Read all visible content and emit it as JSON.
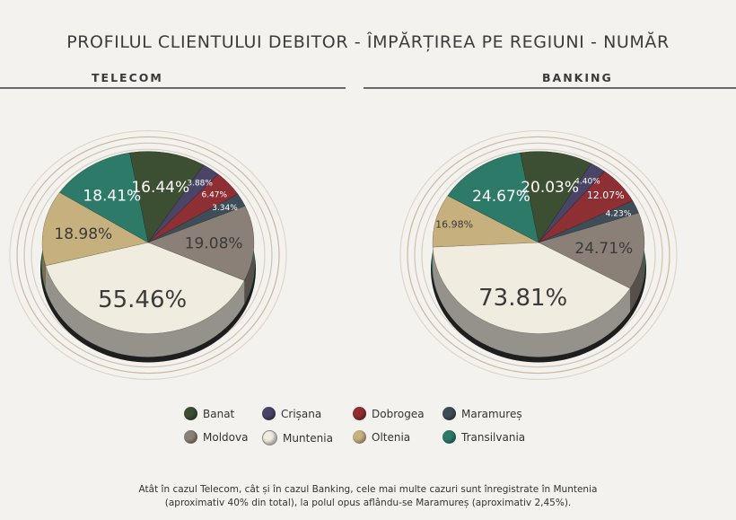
{
  "title": "PROFILUL CLIENTULUI DEBITOR - ÎMPĂRȚIREA PE REGIUNI - NUMĂR",
  "note": {
    "line1": "Atât în cazul Telecom, cât și în cazul Banking, cele mai multe cazuri sunt înregistrate în Muntenia",
    "line2": "(aproximativ 40% din total), la polul opus aflându-se Maramureș (aproximativ 2,45%)."
  },
  "colors": {
    "Banat": "#3d4f32",
    "Crișana": "#4a4466",
    "Dobrogea": "#8e2f34",
    "Maramureș": "#3e4d58",
    "Moldova": "#8a8077",
    "Muntenia": "#f1ece0",
    "Oltenia": "#c6b07e",
    "Transilvania": "#2e7a69"
  },
  "legend": [
    {
      "name": "Banat",
      "label": "Banat"
    },
    {
      "name": "Crișana",
      "label": "Crișana"
    },
    {
      "name": "Dobrogea",
      "label": "Dobrogea"
    },
    {
      "name": "Maramureș",
      "label": "Maramureș"
    },
    {
      "name": "Moldova",
      "label": "Moldova"
    },
    {
      "name": "Muntenia",
      "label": "Muntenia"
    },
    {
      "name": "Oltenia",
      "label": "Oltenia"
    },
    {
      "name": "Transilvania",
      "label": "Transilvania"
    }
  ],
  "chart_data": [
    {
      "type": "pie",
      "title": "TELECOM",
      "slices": [
        {
          "name": "Banat",
          "value": 16.44,
          "label": "16.44%"
        },
        {
          "name": "Crișana",
          "value": 3.88,
          "label": "3.88%"
        },
        {
          "name": "Dobrogea",
          "value": 6.47,
          "label": "6.47%"
        },
        {
          "name": "Maramureș",
          "value": 3.34,
          "label": "3.34%"
        },
        {
          "name": "Moldova",
          "value": 19.08,
          "label": "19.08%"
        },
        {
          "name": "Muntenia",
          "value": 55.46,
          "label": "55.46%"
        },
        {
          "name": "Oltenia",
          "value": 18.98,
          "label": "18.98%"
        },
        {
          "name": "Transilvania",
          "value": 18.41,
          "label": "18.41%"
        }
      ]
    },
    {
      "type": "pie",
      "title": "BANKING",
      "slices": [
        {
          "name": "Banat",
          "value": 20.03,
          "label": "20.03%"
        },
        {
          "name": "Crișana",
          "value": 4.4,
          "label": "4.40%"
        },
        {
          "name": "Dobrogea",
          "value": 12.07,
          "label": "12.07%"
        },
        {
          "name": "Maramureș",
          "value": 4.23,
          "label": "4.23%"
        },
        {
          "name": "Moldova",
          "value": 24.71,
          "label": "24.71%"
        },
        {
          "name": "Muntenia",
          "value": 73.81,
          "label": "73.81%"
        },
        {
          "name": "Oltenia",
          "value": 16.98,
          "label": "16.98%"
        },
        {
          "name": "Transilvania",
          "value": 24.67,
          "label": "24.67%"
        }
      ]
    }
  ]
}
